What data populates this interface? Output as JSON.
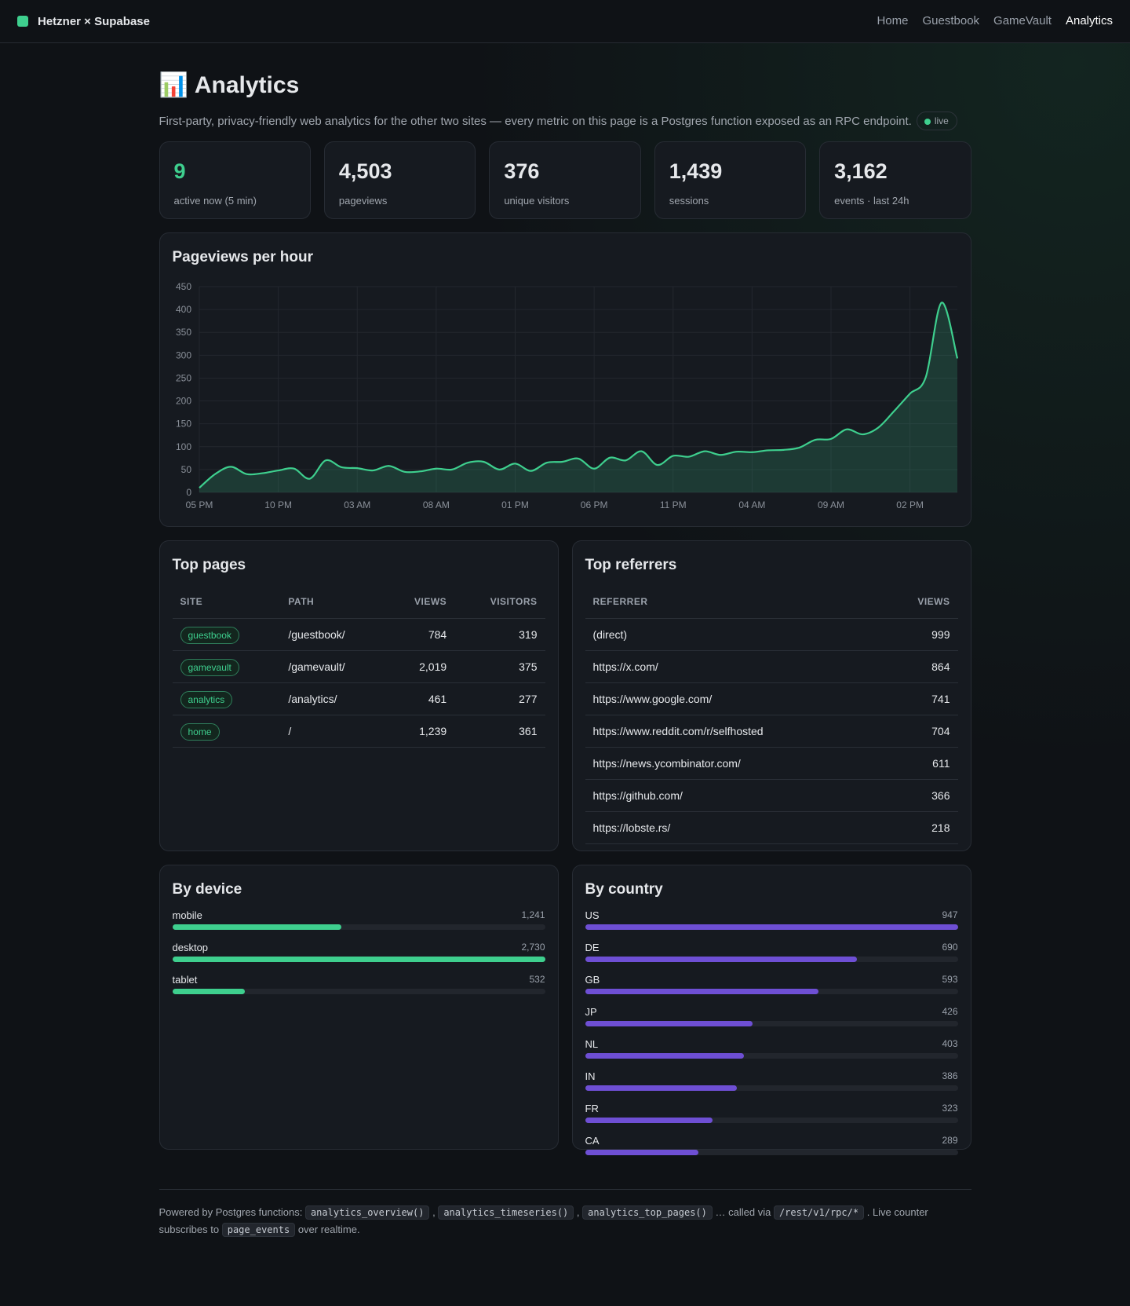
{
  "nav": {
    "brand": "Hetzner × Supabase",
    "links": [
      "Home",
      "Guestbook",
      "GameVault",
      "Analytics"
    ]
  },
  "header": {
    "icon": "📊",
    "title": "Analytics",
    "subtitle": "First-party, privacy-friendly web analytics for the other two sites — every metric on this page is a Postgres function exposed as an RPC endpoint.",
    "badge": "live"
  },
  "stats": [
    {
      "value": "9",
      "label": "active now (5 min)"
    },
    {
      "value": "4,503",
      "label": "pageviews"
    },
    {
      "value": "376",
      "label": "unique visitors"
    },
    {
      "value": "1,439",
      "label": "sessions"
    },
    {
      "value": "3,162",
      "label": "events · last 24h"
    }
  ],
  "chart_data": [
    {
      "type": "line",
      "title": "Pageviews per hour",
      "color": "#3ecf8e",
      "grid": true,
      "categories": [
        "05 PM",
        null,
        null,
        null,
        null,
        "10 PM",
        null,
        null,
        null,
        null,
        "03 AM",
        null,
        null,
        null,
        null,
        "08 AM",
        null,
        null,
        null,
        null,
        "01 PM",
        null,
        null,
        null,
        null,
        "06 PM",
        null,
        null,
        null,
        null,
        "11 PM",
        null,
        null,
        null,
        null,
        "04 AM",
        null,
        null,
        null,
        null,
        "09 AM",
        null,
        null,
        null,
        null,
        "02 PM",
        null,
        null,
        null
      ],
      "values": [
        10,
        40,
        56,
        40,
        42,
        48,
        52,
        30,
        70,
        55,
        53,
        48,
        58,
        45,
        46,
        52,
        50,
        65,
        67,
        50,
        63,
        47,
        65,
        67,
        74,
        52,
        76,
        70,
        90,
        60,
        80,
        78,
        90,
        82,
        89,
        88,
        92,
        93,
        98,
        115,
        117,
        138,
        127,
        142,
        178,
        216,
        252,
        415,
        293
      ],
      "ylim": [
        0,
        450
      ],
      "yticks": [
        0,
        50,
        100,
        150,
        200,
        250,
        300,
        350,
        400,
        450
      ]
    },
    {
      "type": "hbar",
      "title": "By device",
      "color": "#3ecf8e",
      "categories": [
        "mobile",
        "desktop",
        "tablet"
      ],
      "values": [
        1241,
        2730,
        532
      ],
      "value_labels": [
        "1,241",
        "2,730",
        "532"
      ]
    },
    {
      "type": "hbar",
      "title": "By country",
      "color": "#6e4fd4",
      "categories": [
        "US",
        "DE",
        "GB",
        "JP",
        "NL",
        "IN",
        "FR",
        "CA"
      ],
      "values": [
        947,
        690,
        593,
        426,
        403,
        386,
        323,
        289
      ]
    }
  ],
  "top_pages": {
    "title": "Top pages",
    "columns": [
      "SITE",
      "PATH",
      "VIEWS",
      "VISITORS"
    ],
    "rows": [
      [
        "guestbook",
        "/guestbook/",
        "784",
        "319"
      ],
      [
        "gamevault",
        "/gamevault/",
        "2,019",
        "375"
      ],
      [
        "analytics",
        "/analytics/",
        "461",
        "277"
      ],
      [
        "home",
        "/",
        "1,239",
        "361"
      ]
    ]
  },
  "top_referrers": {
    "title": "Top referrers",
    "columns": [
      "REFERRER",
      "VIEWS"
    ],
    "rows": [
      [
        "(direct)",
        "999"
      ],
      [
        "https://x.com/",
        "864"
      ],
      [
        "https://www.google.com/",
        "741"
      ],
      [
        "https://www.reddit.com/r/selfhosted",
        "704"
      ],
      [
        "https://news.ycombinator.com/",
        "611"
      ],
      [
        "https://github.com/",
        "366"
      ],
      [
        "https://lobste.rs/",
        "218"
      ]
    ]
  },
  "footer": [
    {
      "text": "Powered by Postgres functions:"
    },
    {
      "code": "analytics_overview()"
    },
    {
      "text": ","
    },
    {
      "code": "analytics_timeseries()"
    },
    {
      "text": ","
    },
    {
      "code": "analytics_top_pages()"
    },
    {
      "text": "… called via"
    },
    {
      "code": "/rest/v1/rpc/*"
    },
    {
      "text": ". Live counter subscribes to"
    },
    {
      "code": "page_events"
    },
    {
      "text": "over realtime."
    }
  ]
}
